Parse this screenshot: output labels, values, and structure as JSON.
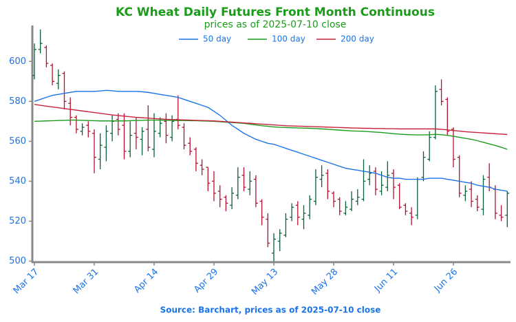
{
  "chart_data": {
    "type": "ohlc",
    "title": "KC Wheat Daily Futures Front Month Continuous",
    "subtitle": "prices as of 2025-07-10 close",
    "source": "Source: Barchart, prices as of 2025-07-10 close",
    "categories": [
      "Mar 17",
      null,
      null,
      null,
      null,
      null,
      null,
      null,
      null,
      null,
      "Mar 31",
      null,
      null,
      null,
      null,
      null,
      null,
      null,
      null,
      null,
      "Apr 14",
      null,
      null,
      null,
      null,
      null,
      null,
      null,
      null,
      null,
      "Apr 29",
      null,
      null,
      null,
      null,
      null,
      null,
      null,
      null,
      null,
      "May 13",
      null,
      null,
      null,
      null,
      null,
      null,
      null,
      null,
      null,
      "May 28",
      null,
      null,
      null,
      null,
      null,
      null,
      null,
      null,
      null,
      "Jun 11",
      null,
      null,
      null,
      null,
      null,
      null,
      null,
      null,
      null,
      "Jun 26",
      null,
      null,
      null,
      null,
      null,
      null,
      null,
      null,
      null
    ],
    "ohlc": {
      "open": [
        593,
        606,
        607,
        598,
        589,
        594,
        579,
        572,
        565,
        568,
        564,
        551,
        557,
        564,
        571,
        568,
        555,
        564,
        561,
        566,
        556,
        564,
        570,
        562,
        571,
        567,
        559,
        556,
        548,
        547,
        540,
        535,
        532,
        528,
        533,
        543,
        536,
        541,
        530,
        521,
        504,
        510,
        513,
        522,
        528,
        521,
        523,
        530,
        541,
        544,
        534,
        531,
        524,
        526,
        530,
        531,
        541,
        545,
        535,
        537,
        544,
        538,
        528,
        524,
        523,
        542,
        551,
        562,
        586,
        581,
        566,
        552,
        533,
        536,
        531,
        526,
        542,
        536,
        523,
        523
      ],
      "high": [
        609,
        616,
        608,
        599,
        596,
        595,
        582,
        573,
        569,
        570,
        566,
        564,
        568,
        573,
        574,
        574,
        570,
        572,
        567,
        578,
        574,
        572,
        574,
        573,
        583,
        569,
        562,
        557,
        551,
        547,
        545,
        538,
        533,
        537,
        547,
        547,
        545,
        543,
        531,
        524,
        514,
        516,
        524,
        529,
        530,
        528,
        533,
        546,
        548,
        546,
        535,
        532,
        530,
        535,
        536,
        551,
        548,
        547,
        545,
        550,
        546,
        539,
        529,
        527,
        542,
        555,
        565,
        588,
        591,
        582,
        567,
        553,
        538,
        540,
        533,
        543,
        549,
        538,
        528,
        535
      ],
      "low": [
        591,
        604,
        597,
        588,
        586,
        576,
        568,
        564,
        563,
        562,
        544,
        546,
        550,
        560,
        563,
        551,
        552,
        556,
        553,
        555,
        552,
        562,
        559,
        560,
        566,
        556,
        553,
        545,
        543,
        535,
        530,
        527,
        525,
        526,
        531,
        535,
        533,
        527,
        518,
        507,
        500,
        505,
        512,
        520,
        518,
        516,
        521,
        528,
        537,
        531,
        527,
        523,
        523,
        525,
        528,
        530,
        538,
        533,
        533,
        535,
        531,
        526,
        523,
        518,
        521,
        540,
        550,
        561,
        578,
        563,
        547,
        532,
        530,
        527,
        525,
        523,
        535,
        521,
        520,
        517
      ],
      "close": [
        606,
        609,
        599,
        590,
        593,
        580,
        572,
        566,
        567,
        565,
        552,
        558,
        565,
        570,
        566,
        555,
        563,
        562,
        565,
        557,
        565,
        569,
        563,
        570,
        568,
        558,
        555,
        549,
        546,
        539,
        534,
        531,
        529,
        534,
        542,
        537,
        540,
        529,
        522,
        509,
        511,
        514,
        521,
        527,
        522,
        524,
        531,
        542,
        543,
        535,
        530,
        525,
        527,
        531,
        532,
        540,
        544,
        536,
        538,
        543,
        537,
        527,
        525,
        522,
        541,
        552,
        562,
        585,
        580,
        565,
        551,
        534,
        535,
        530,
        527,
        541,
        537,
        524,
        522,
        534
      ]
    },
    "up_color": "#0b5e35",
    "down_color": "#b3102e",
    "series": [
      {
        "name": "50 day",
        "color": "#1a73e8",
        "values": [
          580,
          581,
          582,
          583,
          583.5,
          584,
          584.5,
          585,
          585,
          585,
          585,
          585.2,
          585.5,
          585.3,
          585,
          585,
          585,
          585,
          584.8,
          584.5,
          584,
          583.5,
          583,
          582.5,
          582,
          581,
          580,
          579,
          578,
          577,
          575,
          573,
          570.5,
          568,
          566,
          564,
          562.5,
          561,
          560,
          559,
          558.5,
          557.5,
          556.5,
          555.5,
          554.5,
          553.5,
          552.5,
          551.5,
          550.5,
          549.5,
          548.5,
          547.5,
          546.5,
          546,
          545.5,
          545,
          544.5,
          544,
          543,
          542,
          541.5,
          541.5,
          541,
          541,
          541,
          541,
          541.5,
          541.5,
          541.5,
          541,
          540.5,
          540,
          539.5,
          539,
          538,
          537.5,
          537,
          536,
          535.5,
          535
        ]
      },
      {
        "name": "100 day",
        "color": "#1a9c1a",
        "values": [
          570,
          570.1,
          570.2,
          570.3,
          570.4,
          570.5,
          570.6,
          570.6,
          570.5,
          570.4,
          570.3,
          570.2,
          570.2,
          570.2,
          570.2,
          570.2,
          570.3,
          570.4,
          570.5,
          570.6,
          570.6,
          570.6,
          570.5,
          570.5,
          570.4,
          570.4,
          570.3,
          570.3,
          570.2,
          570.1,
          570,
          569.8,
          569.6,
          569.4,
          569.2,
          569,
          568.6,
          568.2,
          567.8,
          567.5,
          567.2,
          567,
          566.9,
          566.8,
          566.7,
          566.6,
          566.5,
          566.4,
          566.2,
          566,
          565.8,
          565.6,
          565.4,
          565.2,
          565.1,
          565,
          564.8,
          564.6,
          564.4,
          564.1,
          563.8,
          563.6,
          563.4,
          563.3,
          563.2,
          563.2,
          563.3,
          563.5,
          563.3,
          563,
          562.5,
          562,
          561.5,
          561,
          560.3,
          559.5,
          558.7,
          557.9,
          557,
          556
        ]
      },
      {
        "name": "200 day",
        "color": "#c8203a",
        "values": [
          578.5,
          578,
          577.6,
          577.2,
          576.8,
          576.4,
          576,
          575.6,
          575.2,
          574.8,
          574.4,
          574,
          573.6,
          573.2,
          572.9,
          572.6,
          572.3,
          572,
          571.8,
          571.6,
          571.4,
          571.2,
          571,
          570.9,
          570.8,
          570.7,
          570.6,
          570.5,
          570.4,
          570.3,
          570.2,
          570,
          569.8,
          569.6,
          569.4,
          569.2,
          569,
          568.8,
          568.6,
          568.4,
          568.2,
          568,
          567.8,
          567.7,
          567.6,
          567.5,
          567.4,
          567.3,
          567.2,
          567.1,
          567,
          566.9,
          566.8,
          566.7,
          566.6,
          566.5,
          566.5,
          566.4,
          566.4,
          566.3,
          566.3,
          566.2,
          566.2,
          566.2,
          566.2,
          566.2,
          566.2,
          566.2,
          566,
          565.7,
          565.4,
          565.1,
          564.8,
          564.6,
          564.4,
          564.2,
          564,
          563.8,
          563.6,
          563.4
        ]
      }
    ],
    "ylim": [
      499.5,
      618
    ],
    "yticks": [
      500,
      520,
      540,
      560,
      580,
      600
    ],
    "legend": "top",
    "grid": false
  }
}
